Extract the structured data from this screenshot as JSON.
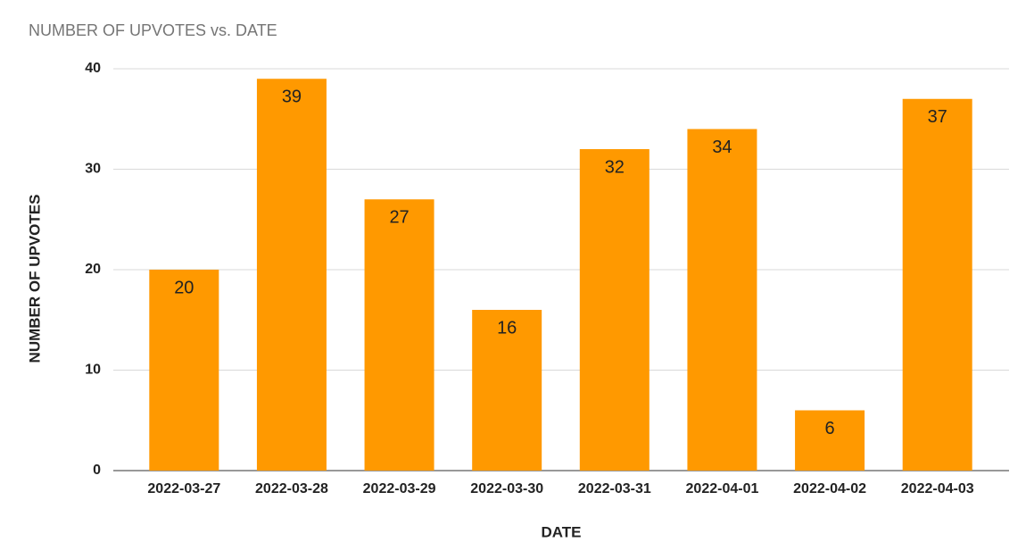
{
  "chart_data": {
    "type": "bar",
    "title": "NUMBER OF UPVOTES vs. DATE",
    "x_label": "DATE",
    "y_label": "NUMBER OF UPVOTES",
    "categories": [
      "2022-03-27",
      "2022-03-28",
      "2022-03-29",
      "2022-03-30",
      "2022-03-31",
      "2022-04-01",
      "2022-04-02",
      "2022-04-03"
    ],
    "values": [
      20,
      39,
      27,
      16,
      32,
      34,
      6,
      37
    ],
    "color": "#ff9900",
    "ylim": [
      0,
      40
    ],
    "yticks": [
      0,
      10,
      20,
      30,
      40
    ],
    "grid": true
  }
}
